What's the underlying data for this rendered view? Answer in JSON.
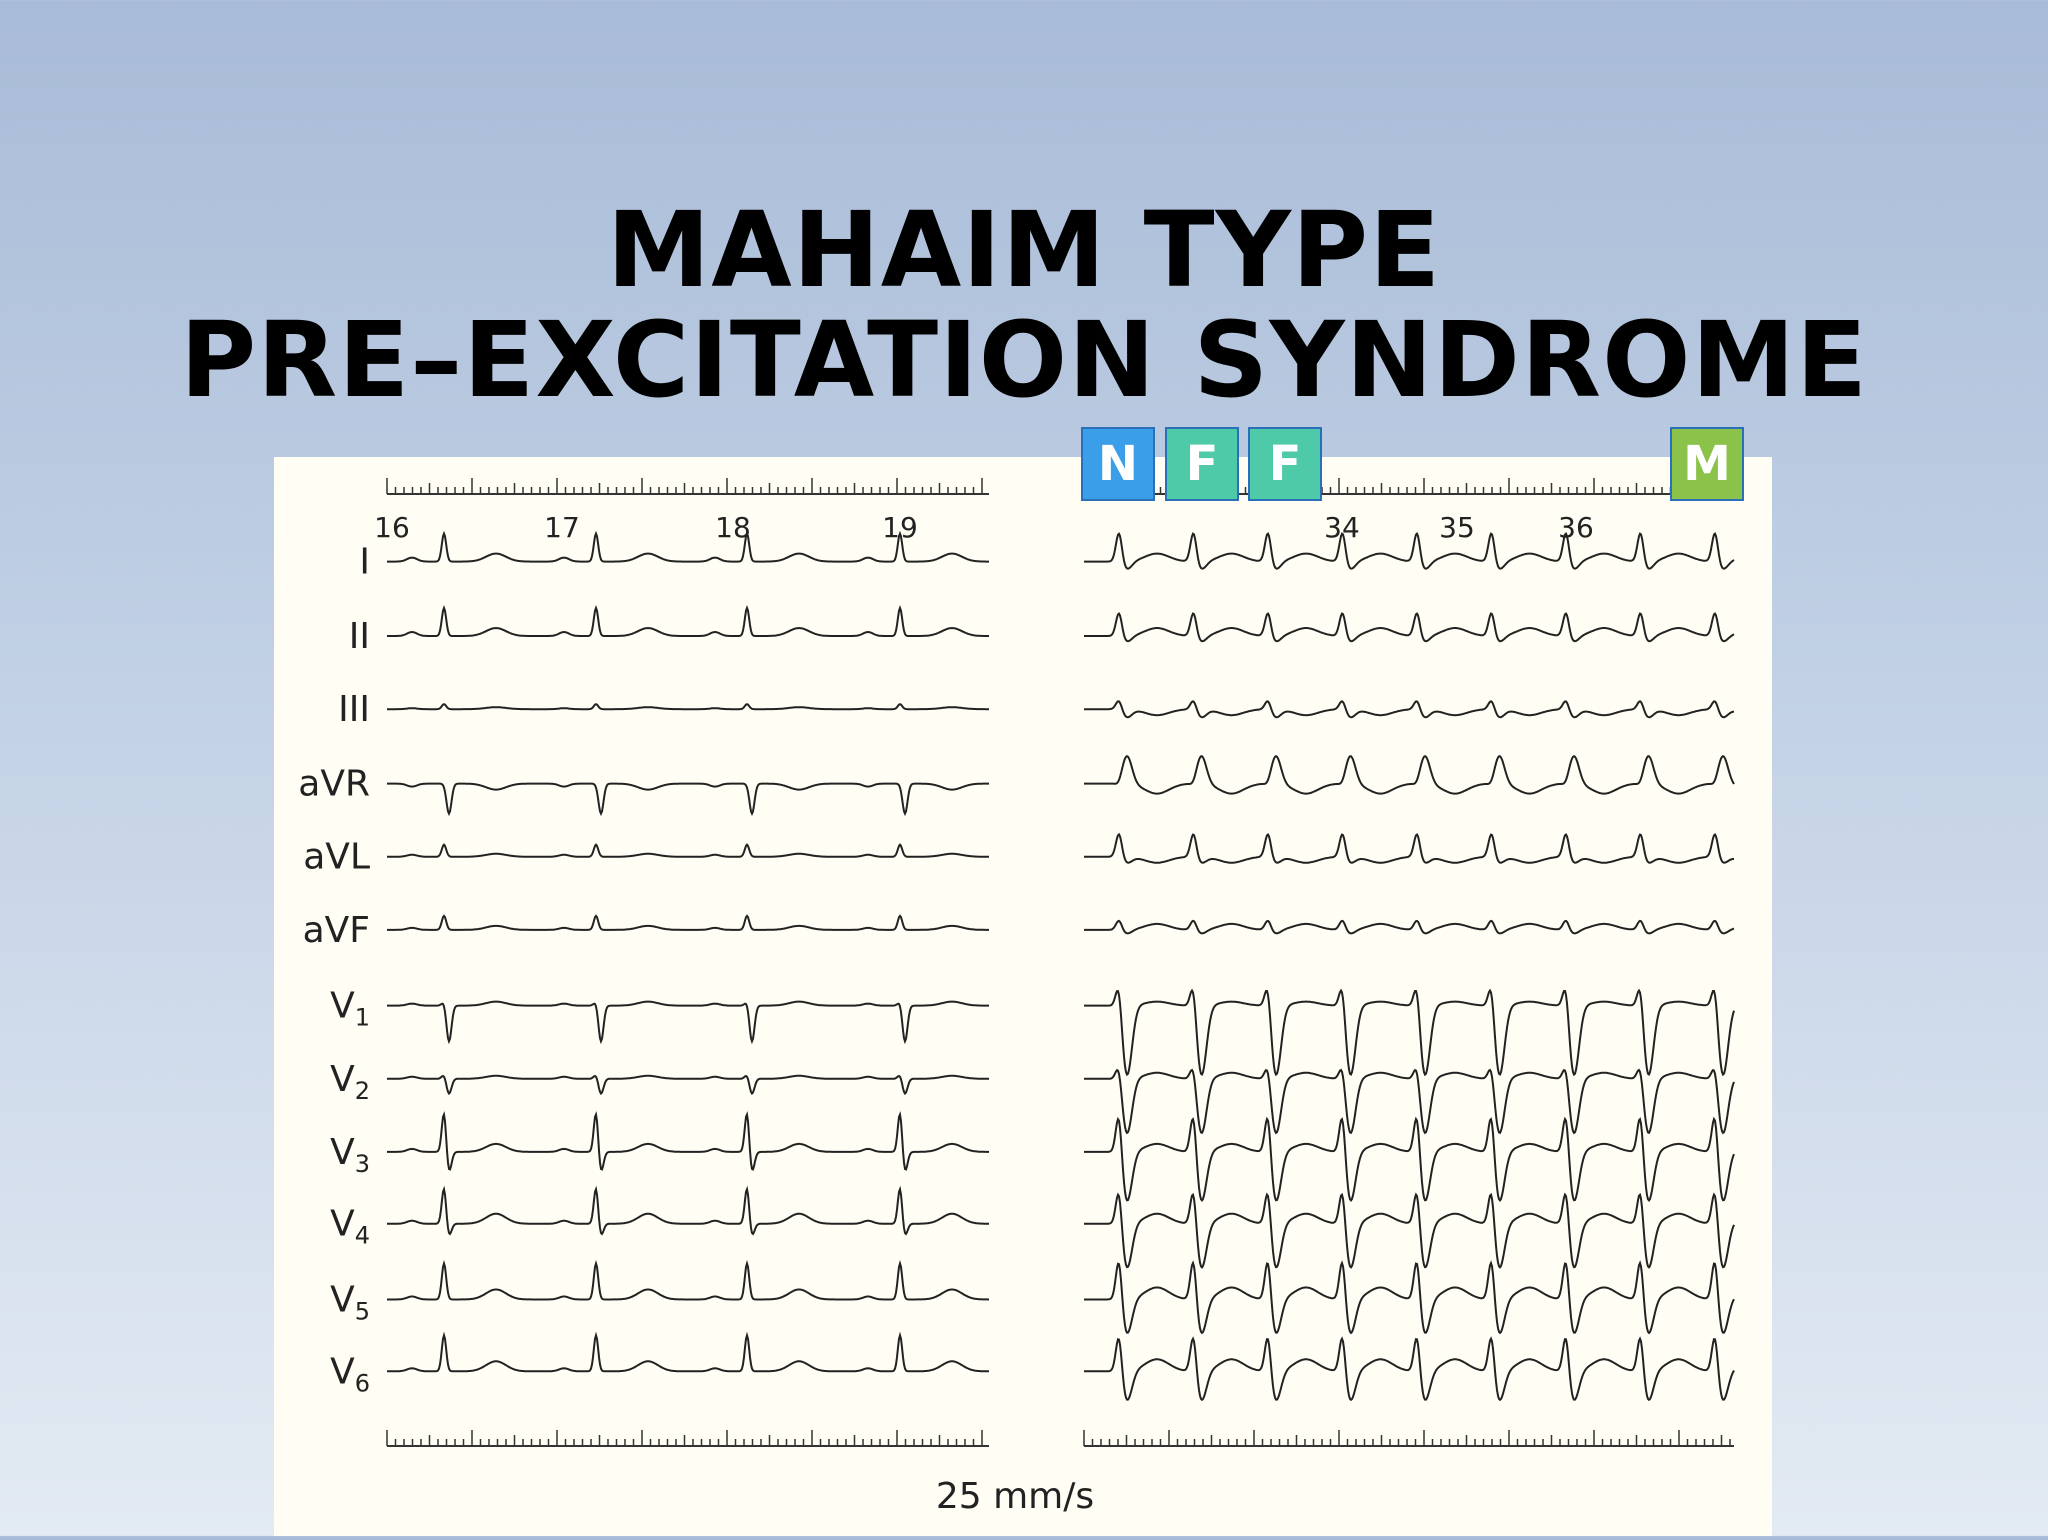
{
  "title": {
    "line1": "MAHAIM TYPE",
    "line2": "PRE–EXCITATION SYNDROME"
  },
  "ecg": {
    "left_ruler": [
      "16",
      "17",
      "18",
      "19"
    ],
    "right_ruler": [
      "34",
      "35",
      "36"
    ],
    "leads": [
      {
        "text": "I"
      },
      {
        "text": "II"
      },
      {
        "text": "III"
      },
      {
        "text": "aVR"
      },
      {
        "text": "aVL"
      },
      {
        "text": "aVF"
      },
      {
        "text": "V",
        "sub": "1"
      },
      {
        "text": "V",
        "sub": "2"
      },
      {
        "text": "V",
        "sub": "3"
      },
      {
        "text": "V",
        "sub": "4"
      },
      {
        "text": "V",
        "sub": "5"
      },
      {
        "text": "V",
        "sub": "6"
      }
    ],
    "speed": "25 mm/s"
  },
  "badges": [
    "N",
    "F",
    "F",
    "M"
  ]
}
